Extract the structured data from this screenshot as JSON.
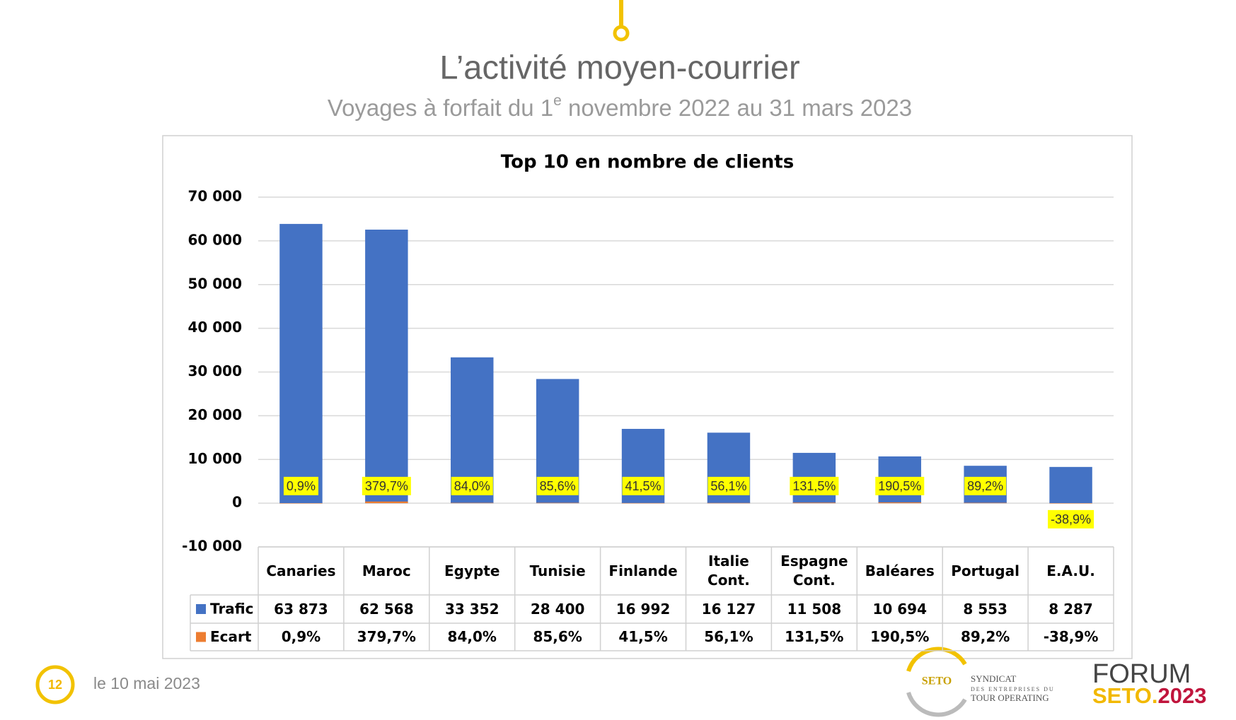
{
  "slide": {
    "title": "L’activité moyen-courrier",
    "subtitle_start": "Voyages à forfait du 1",
    "subtitle_sup": "e",
    "subtitle_end": " novembre 2022 au 31 mars 2023",
    "page_number": "12",
    "date": "le 10 mai 2023",
    "logo": {
      "mark": "SETO",
      "line1": "SYNDICAT",
      "line2": "DES ENTREPRISES DU",
      "line3": "TOUR OPERATING",
      "forum": "FORUM",
      "seto": "SETO.",
      "year": "2023"
    }
  },
  "chart_data": {
    "type": "bar",
    "title": "Top 10 en nombre de clients",
    "categories": [
      "Canaries",
      "Maroc",
      "Egypte",
      "Tunisie",
      "Finlande",
      "Italie Cont.",
      "Espagne Cont.",
      "Baléares",
      "Portugal",
      "E.A.U."
    ],
    "series": [
      {
        "name": "Trafic",
        "color": "#4472c4",
        "values": [
          63873,
          62568,
          33352,
          28400,
          16992,
          16127,
          11508,
          10694,
          8553,
          8287
        ],
        "value_labels": [
          "63 873",
          "62 568",
          "33 352",
          "28 400",
          "16 992",
          "16 127",
          "11 508",
          "10 694",
          "8 553",
          "8 287"
        ]
      },
      {
        "name": "Ecart",
        "color": "#ed7d31",
        "values": [
          0.9,
          379.7,
          84.0,
          85.6,
          41.5,
          56.1,
          131.5,
          190.5,
          89.2,
          -38.9
        ],
        "value_labels": [
          "0,9%",
          "379,7%",
          "84,0%",
          "85,6%",
          "41,5%",
          "56,1%",
          "131,5%",
          "190,5%",
          "89,2%",
          "-38,9%"
        ]
      }
    ],
    "ylim": [
      -10000,
      70000
    ],
    "yticks": [
      {
        "value": -10000,
        "label": "-10 000"
      },
      0,
      {
        "value": 10000,
        "label": "10 000"
      },
      {
        "value": 20000,
        "label": "20 000"
      },
      {
        "value": 30000,
        "label": "30 000"
      },
      {
        "value": 40000,
        "label": "40 000"
      },
      {
        "value": 50000,
        "label": "50 000"
      },
      {
        "value": 60000,
        "label": "60 000"
      },
      {
        "value": 70000,
        "label": "70 000"
      }
    ],
    "grid": true,
    "data_table": true,
    "label_highlight": "#ffff00"
  }
}
